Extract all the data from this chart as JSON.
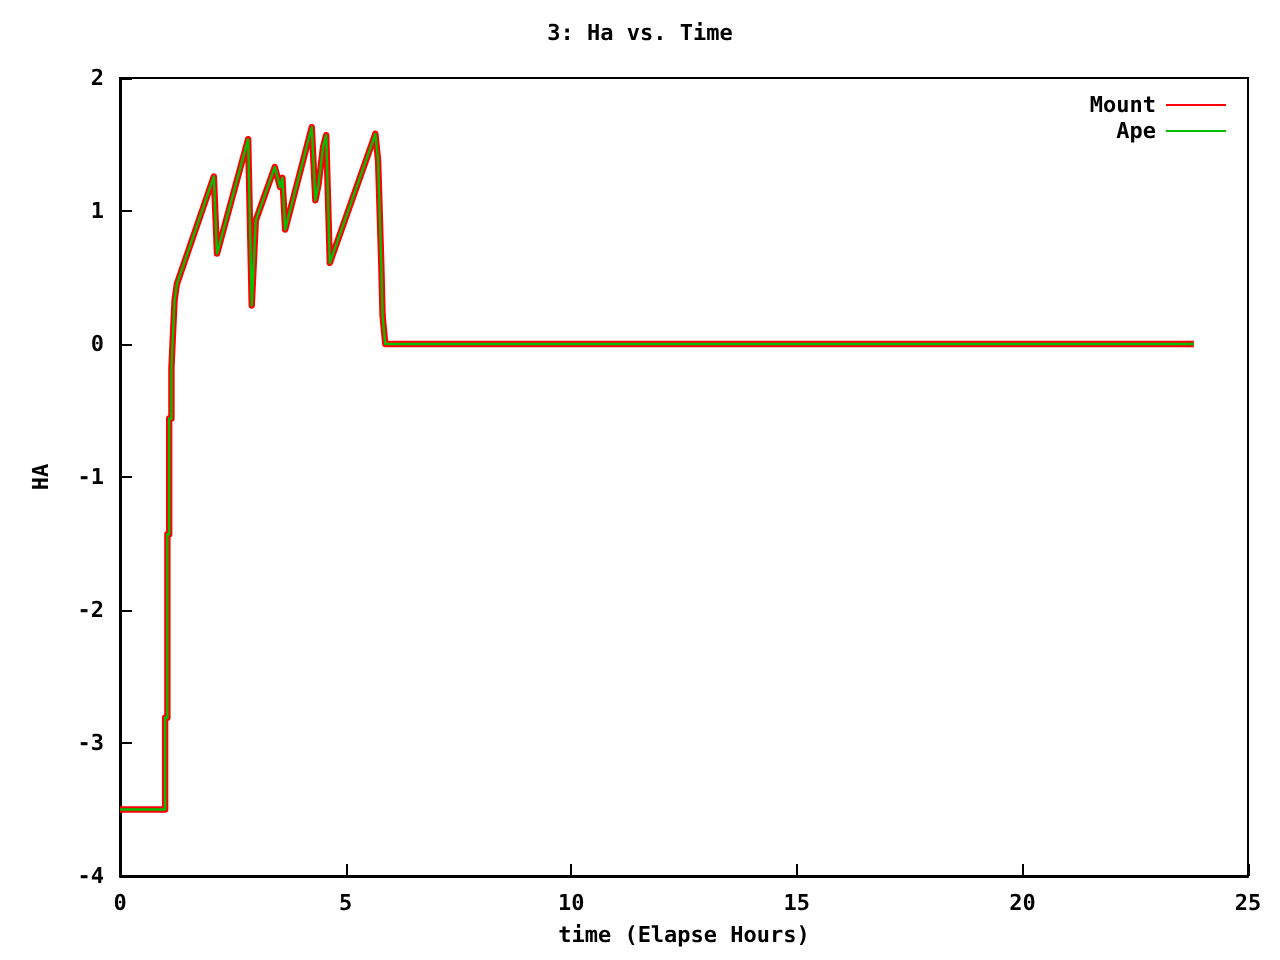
{
  "chart_data": {
    "type": "line",
    "title": "3: Ha vs. Time",
    "xlabel": "time (Elapse Hours)",
    "ylabel": "HA",
    "x": [
      0,
      1.0,
      1.0,
      1.05,
      1.05,
      1.09,
      1.09,
      1.14,
      1.14,
      1.18,
      1.21,
      1.26,
      2.08,
      2.15,
      2.84,
      2.92,
      3.01,
      3.43,
      3.55,
      3.6,
      3.66,
      4.25,
      4.33,
      4.4,
      4.5,
      4.57,
      4.65,
      5.66,
      5.72,
      5.79,
      5.82,
      5.88,
      23.8
    ],
    "series": [
      {
        "name": "Mount",
        "color": "#ff0000",
        "values": [
          -3.5,
          -3.5,
          -2.81,
          -2.81,
          -1.43,
          -1.43,
          -0.56,
          -0.56,
          -0.18,
          0.12,
          0.33,
          0.45,
          1.26,
          0.68,
          1.54,
          0.29,
          0.93,
          1.33,
          1.18,
          1.25,
          0.86,
          1.63,
          1.08,
          1.2,
          1.48,
          1.57,
          0.61,
          1.58,
          1.38,
          0.61,
          0.21,
          0,
          0
        ]
      },
      {
        "name": "Ape",
        "color": "#00c000",
        "values": [
          -3.5,
          -3.5,
          -2.81,
          -2.81,
          -1.43,
          -1.43,
          -0.56,
          -0.56,
          -0.18,
          0.12,
          0.33,
          0.45,
          1.26,
          0.68,
          1.54,
          0.29,
          0.93,
          1.33,
          1.18,
          1.25,
          0.86,
          1.63,
          1.08,
          1.2,
          1.48,
          1.57,
          0.61,
          1.58,
          1.38,
          0.61,
          0.21,
          0,
          0
        ]
      }
    ],
    "xlim": [
      0,
      25
    ],
    "xticks": [
      0,
      5,
      10,
      15,
      20,
      25
    ],
    "ylim": [
      -4,
      2
    ],
    "yticks": [
      -4,
      -3,
      -2,
      -1,
      0,
      1,
      2
    ],
    "grid": false,
    "legend": "top right",
    "marker": "none",
    "line_style": "solid"
  }
}
